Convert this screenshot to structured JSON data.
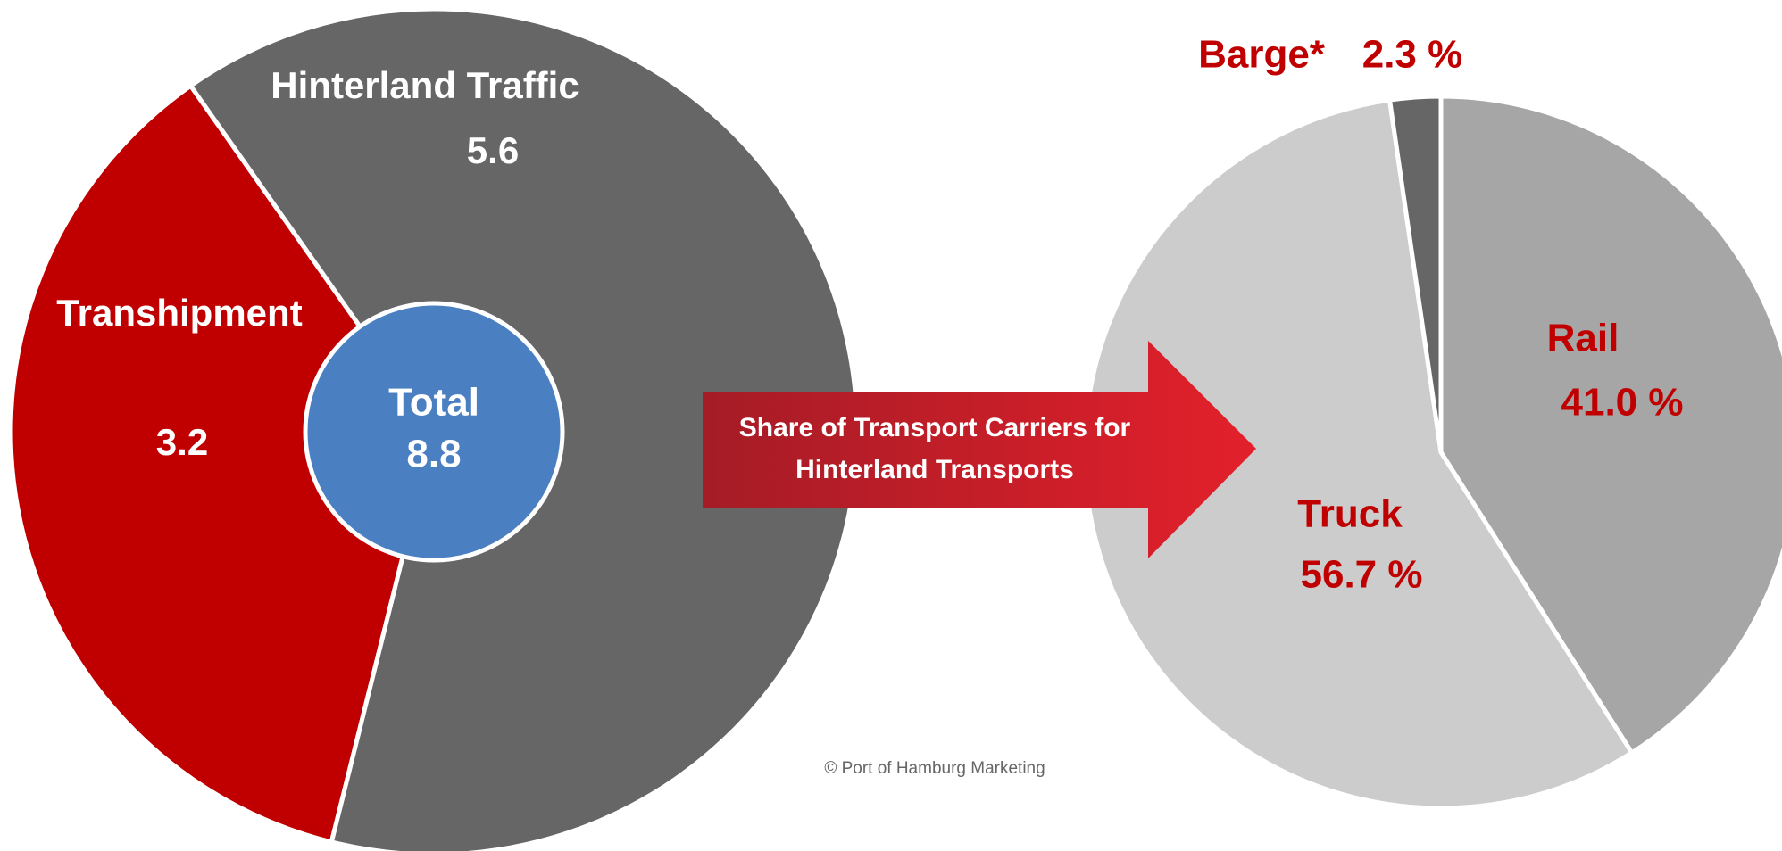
{
  "chart_data": [
    {
      "type": "pie",
      "categories": [
        "Transhipment",
        "Hinterland Traffic"
      ],
      "values": [
        3.2,
        5.6
      ],
      "colors": [
        "#c00000",
        "#666666"
      ],
      "center_label": "Total",
      "center_value": 8.8,
      "center_color": "#4a7fc1"
    },
    {
      "type": "pie",
      "categories": [
        "Rail",
        "Truck",
        "Barge*"
      ],
      "values": [
        41.0,
        56.7,
        2.3
      ],
      "value_labels": [
        "41.0 %",
        "56.7 %",
        "2.3 %"
      ],
      "colors": [
        "#a6a6a6",
        "#cccccc",
        "#666666"
      ]
    }
  ],
  "arrow_label": [
    "Share of Transport Carriers for",
    "Hinterland Transports"
  ],
  "credit": "© Port of Hamburg Marketing"
}
